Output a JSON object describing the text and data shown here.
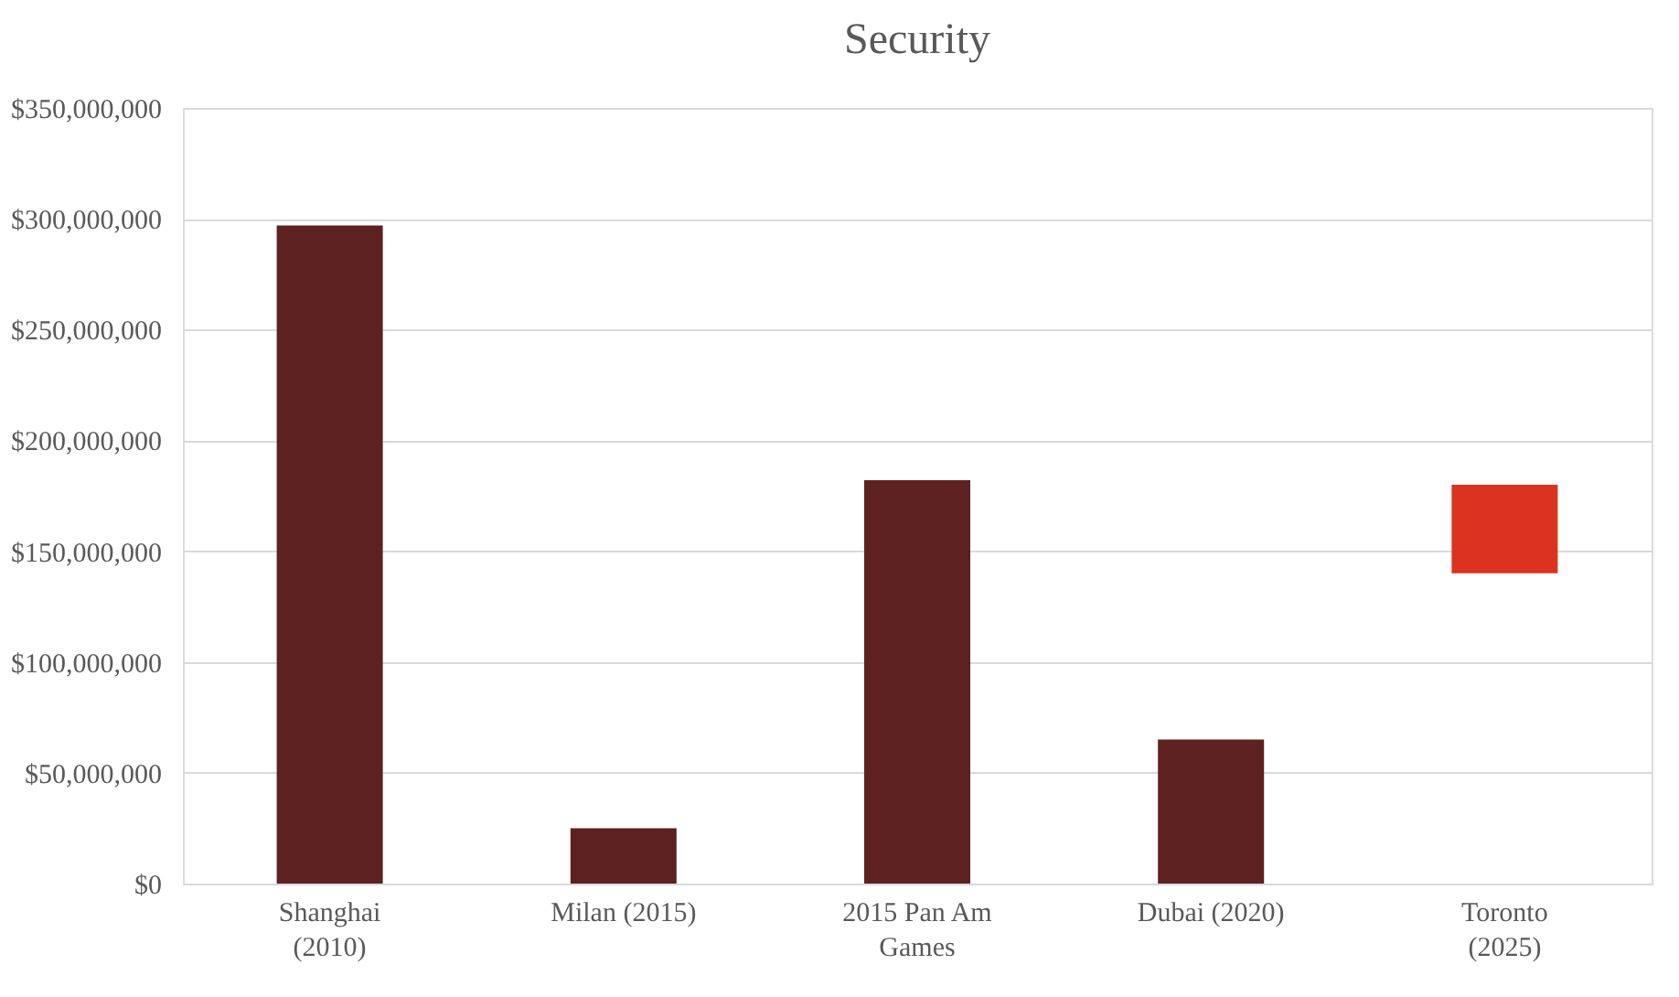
{
  "chart_data": {
    "type": "bar",
    "title": "Security",
    "categories": [
      "Shanghai (2010)",
      "Milan (2015)",
      "2015 Pan Am Games",
      "Dubai (2020)",
      "Toronto (2025)"
    ],
    "values": [
      297000000,
      25000000,
      182000000,
      65000000,
      40000000
    ],
    "base": [
      0,
      0,
      0,
      0,
      140000000
    ],
    "colors": [
      "#5c2120",
      "#5c2120",
      "#5c2120",
      "#5c2120",
      "#dc3220"
    ],
    "ylim": [
      0,
      350000000
    ],
    "yticks": [
      {
        "value": 0,
        "label": "$0"
      },
      {
        "value": 50000000,
        "label": "$50,000,000"
      },
      {
        "value": 100000000,
        "label": "$100,000,000"
      },
      {
        "value": 150000000,
        "label": "$150,000,000"
      },
      {
        "value": 200000000,
        "label": "$200,000,000"
      },
      {
        "value": 250000000,
        "label": "$250,000,000"
      },
      {
        "value": 300000000,
        "label": "$300,000,000"
      },
      {
        "value": 350000000,
        "label": "$350,000,000"
      }
    ],
    "grid": "y"
  }
}
